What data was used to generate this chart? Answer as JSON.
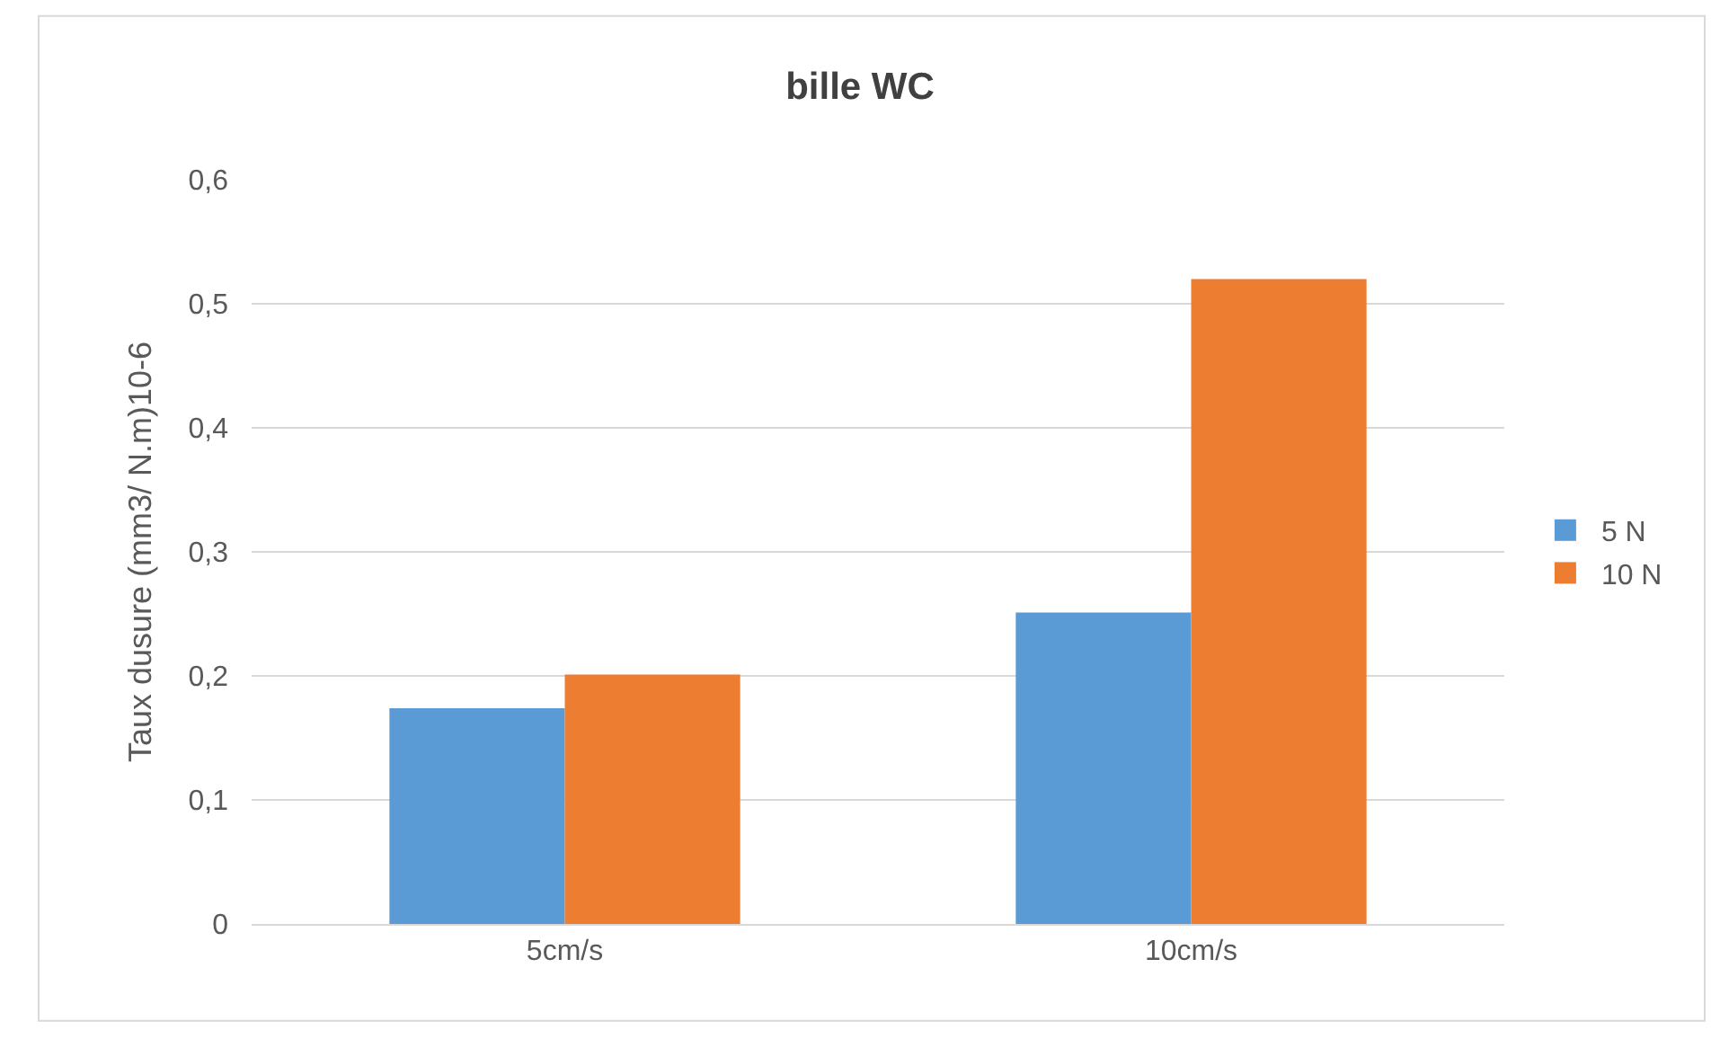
{
  "chart_data": {
    "type": "bar",
    "title": "bille WC",
    "ylabel": "Taux dusure (mm3/ N.m)10-6",
    "categories": [
      "5cm/s",
      "10cm/s"
    ],
    "series": [
      {
        "name": "5 N",
        "color": "#5b9bd5",
        "values": [
          0.174,
          0.251
        ]
      },
      {
        "name": "10 N",
        "color": "#ed7d31",
        "values": [
          0.201,
          0.52
        ]
      }
    ],
    "ylim": [
      0,
      0.6
    ],
    "yticks": [
      {
        "value": 0,
        "label": "0"
      },
      {
        "value": 0.1,
        "label": "0,1"
      },
      {
        "value": 0.2,
        "label": "0,2"
      },
      {
        "value": 0.3,
        "label": "0,3"
      },
      {
        "value": 0.4,
        "label": "0,4"
      },
      {
        "value": 0.5,
        "label": "0,5"
      },
      {
        "value": 0.6,
        "label": "0,6"
      }
    ],
    "grid": "y",
    "legend": "right"
  }
}
